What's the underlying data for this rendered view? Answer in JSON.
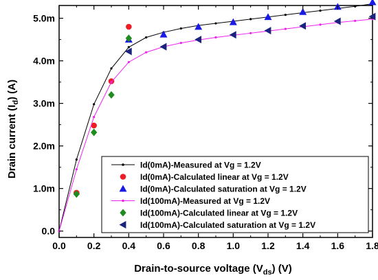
{
  "chart_data": {
    "type": "line",
    "xlabel": {
      "pre": "Drain-to-source voltage (V",
      "sub": "ds",
      "post": ") (V)"
    },
    "ylabel": {
      "pre": "Drain current (I",
      "sub": "d",
      "post": ") (A)"
    },
    "xlim": [
      0.0,
      1.8
    ],
    "ylim": [
      -0.15,
      5.3
    ],
    "x_ticks": [
      0.0,
      0.2,
      0.4,
      0.6,
      0.8,
      1.0,
      1.2,
      1.4,
      1.6,
      1.8
    ],
    "x_tick_labels": [
      "0.0",
      "0.2",
      "0.4",
      "0.6",
      "0.8",
      "1.0",
      "1.2",
      "1.4",
      "1.6",
      "1.8"
    ],
    "y_ticks": [
      0.0,
      1.0,
      2.0,
      3.0,
      4.0,
      5.0
    ],
    "y_tick_labels": [
      "0.0",
      "1.0m",
      "2.0m",
      "3.0m",
      "4.0m",
      "5.0m"
    ],
    "grid": false,
    "legend_position": "bottom-right",
    "series": [
      {
        "name": "Id(0mA)-Measured at Vg = 1.2V",
        "style": "line-dot",
        "color": "#000000",
        "x": [
          0.0,
          0.1,
          0.2,
          0.3,
          0.4,
          0.5,
          0.6,
          0.7,
          0.8,
          0.9,
          1.0,
          1.1,
          1.2,
          1.3,
          1.4,
          1.5,
          1.6,
          1.7,
          1.8
        ],
        "y": [
          0.0,
          1.68,
          2.98,
          3.82,
          4.32,
          4.55,
          4.67,
          4.76,
          4.83,
          4.88,
          4.93,
          4.98,
          5.03,
          5.08,
          5.13,
          5.18,
          5.23,
          5.28,
          5.34
        ]
      },
      {
        "name": "Id(0mA)-Calculated linear at Vg = 1.2V",
        "style": "circle",
        "color": "#ee1c24",
        "x": [
          0.1,
          0.2,
          0.3,
          0.4
        ],
        "y": [
          0.9,
          2.48,
          3.52,
          4.8
        ]
      },
      {
        "name": "Id(0mA)-Calculated saturation at Vg = 1.2V",
        "style": "triangle-up",
        "color": "#1a1ae6",
        "x": [
          0.4,
          0.6,
          0.8,
          1.0,
          1.2,
          1.4,
          1.6,
          1.8
        ],
        "y": [
          4.5,
          4.62,
          4.8,
          4.91,
          5.03,
          5.15,
          5.27,
          5.38
        ]
      },
      {
        "name": "Id(100mA)-Measured at Vg = 1.2V",
        "style": "line-dot",
        "color": "#ee22ee",
        "x": [
          0.0,
          0.1,
          0.2,
          0.3,
          0.4,
          0.5,
          0.6,
          0.7,
          0.8,
          0.9,
          1.0,
          1.1,
          1.2,
          1.3,
          1.4,
          1.5,
          1.6,
          1.7,
          1.8
        ],
        "y": [
          0.0,
          1.45,
          2.68,
          3.5,
          3.97,
          4.2,
          4.33,
          4.42,
          4.49,
          4.55,
          4.6,
          4.65,
          4.7,
          4.75,
          4.8,
          4.85,
          4.9,
          4.94,
          4.98
        ]
      },
      {
        "name": "Id(100mA)-Calculated linear at Vg = 1.2V",
        "style": "diamond",
        "color": "#1e8c1e",
        "x": [
          0.1,
          0.2,
          0.3,
          0.4
        ],
        "y": [
          0.87,
          2.32,
          3.2,
          4.53
        ]
      },
      {
        "name": "Id(100mA)-Calculated saturation at Vg = 1.2V",
        "style": "triangle-left",
        "color": "#1a237e",
        "x": [
          0.4,
          0.6,
          0.8,
          1.0,
          1.2,
          1.4,
          1.6,
          1.8
        ],
        "y": [
          4.22,
          4.33,
          4.5,
          4.61,
          4.71,
          4.82,
          4.93,
          5.04
        ]
      }
    ]
  }
}
